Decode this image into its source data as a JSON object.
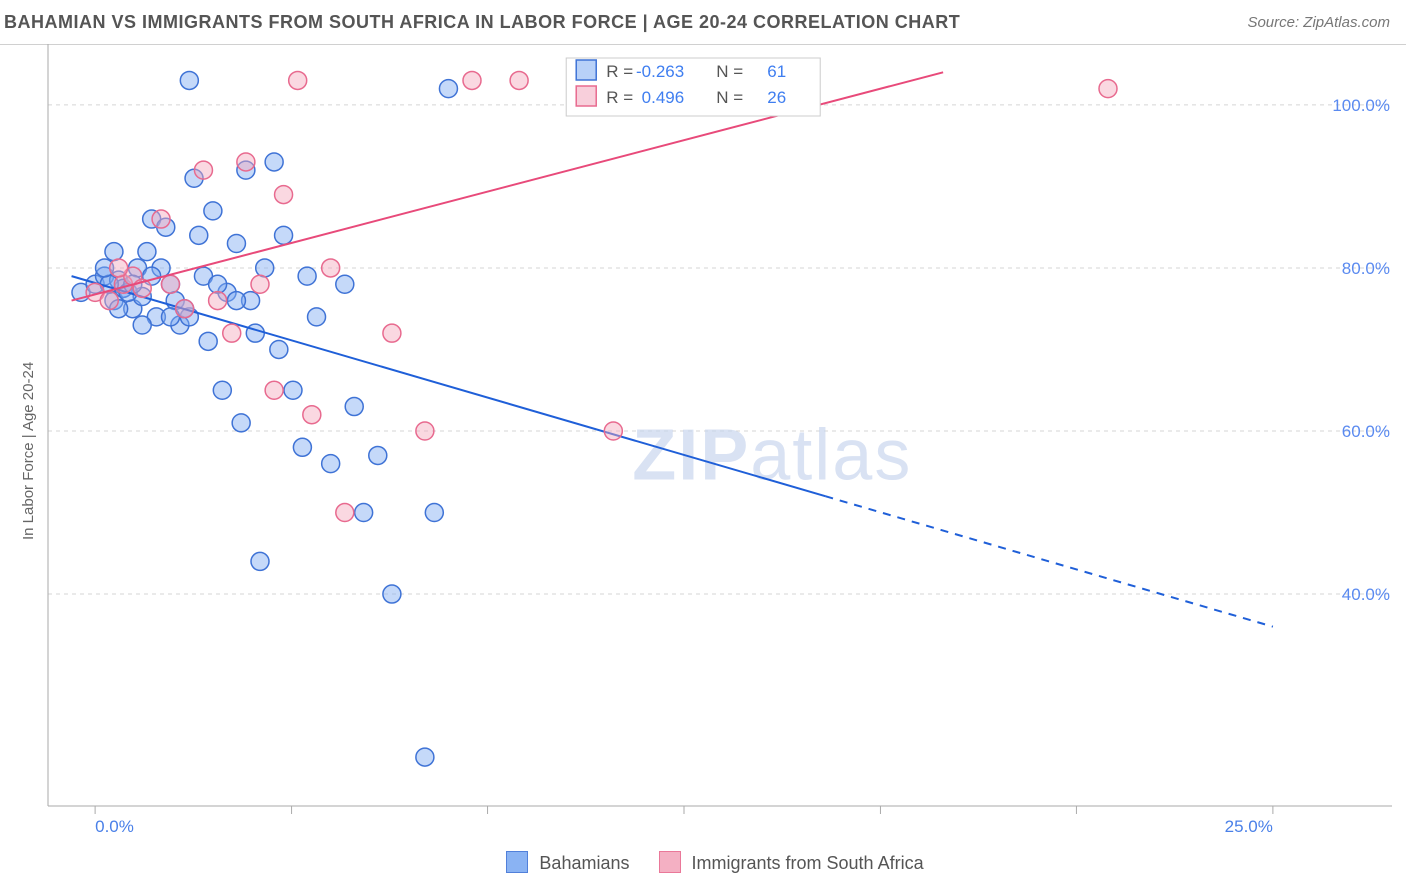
{
  "title": "BAHAMIAN VS IMMIGRANTS FROM SOUTH AFRICA IN LABOR FORCE | AGE 20-24 CORRELATION CHART",
  "source": "Source: ZipAtlas.com",
  "ylabel": "In Labor Force | Age 20-24",
  "watermark": "ZIPatlas",
  "chart": {
    "type": "scatter-correlation",
    "background_color": "#ffffff",
    "grid_color": "#d5d5d5",
    "axis_color": "#aaaaaa",
    "xlim": [
      -1,
      26
    ],
    "ylim": [
      14,
      106
    ],
    "xticks": [
      0,
      25
    ],
    "xtick_labels": [
      "0.0%",
      "25.0%"
    ],
    "xtick_minor": [
      4.17,
      8.33,
      12.5,
      16.67,
      20.83
    ],
    "yticks": [
      40,
      60,
      80,
      100
    ],
    "ytick_labels": [
      "40.0%",
      "60.0%",
      "80.0%",
      "100.0%"
    ],
    "marker_radius": 9,
    "marker_fill_opacity": 0.45,
    "marker_stroke_width": 1.5,
    "line_width": 2
  },
  "legend_top": {
    "r_label": "R =",
    "n_label": "N =",
    "value_color": "#3f7ef0",
    "box_bg": "#ffffff"
  },
  "bottom_legend": {
    "items": [
      {
        "label": "Bahamians",
        "fill": "#7eabf2",
        "stroke": "#3f73d6"
      },
      {
        "label": "Immigrants from South Africa",
        "fill": "#f3a8bd",
        "stroke": "#e86a8f"
      }
    ]
  },
  "series": [
    {
      "name": "Bahamians",
      "fill": "#7eabf2",
      "stroke": "#3f73d6",
      "line_color": "#1f5fd8",
      "R": "-0.263",
      "N": "61",
      "trend": {
        "x1": -0.5,
        "y1": 79,
        "solid_to_x": 15.5,
        "solid_to_y": 52,
        "x2": 25,
        "y2": 36
      },
      "points": [
        [
          -0.3,
          77
        ],
        [
          0.0,
          78
        ],
        [
          0.2,
          79
        ],
        [
          0.4,
          76
        ],
        [
          0.5,
          78.5
        ],
        [
          0.6,
          77.5
        ],
        [
          0.8,
          75
        ],
        [
          0.9,
          80
        ],
        [
          1.0,
          76.5
        ],
        [
          1.1,
          82
        ],
        [
          1.2,
          86
        ],
        [
          1.3,
          74
        ],
        [
          1.5,
          85
        ],
        [
          1.6,
          78
        ],
        [
          1.7,
          76
        ],
        [
          1.8,
          73
        ],
        [
          2.0,
          103
        ],
        [
          2.1,
          91
        ],
        [
          2.2,
          84
        ],
        [
          2.3,
          79
        ],
        [
          2.4,
          71
        ],
        [
          2.5,
          87
        ],
        [
          2.7,
          65
        ],
        [
          2.8,
          77
        ],
        [
          3.0,
          83
        ],
        [
          3.1,
          61
        ],
        [
          3.2,
          92
        ],
        [
          3.3,
          76
        ],
        [
          3.4,
          72
        ],
        [
          3.5,
          44
        ],
        [
          3.6,
          80
        ],
        [
          3.8,
          93
        ],
        [
          3.9,
          70
        ],
        [
          4.0,
          84
        ],
        [
          4.2,
          65
        ],
        [
          4.4,
          58
        ],
        [
          4.5,
          79
        ],
        [
          4.7,
          74
        ],
        [
          5.0,
          56
        ],
        [
          5.3,
          78
        ],
        [
          5.5,
          63
        ],
        [
          5.7,
          50
        ],
        [
          6.0,
          57
        ],
        [
          6.3,
          40
        ],
        [
          7.0,
          20
        ],
        [
          7.2,
          50
        ],
        [
          7.5,
          102
        ],
        [
          2.0,
          74
        ],
        [
          0.5,
          75
        ],
        [
          0.7,
          77
        ],
        [
          0.3,
          78
        ],
        [
          1.4,
          80
        ],
        [
          1.9,
          75
        ],
        [
          2.6,
          78
        ],
        [
          3.0,
          76
        ],
        [
          1.0,
          73
        ],
        [
          0.4,
          82
        ],
        [
          0.8,
          78
        ],
        [
          1.2,
          79
        ],
        [
          1.6,
          74
        ],
        [
          0.2,
          80
        ]
      ]
    },
    {
      "name": "Immigrants from South Africa",
      "fill": "#f3a8bd",
      "stroke": "#e86a8f",
      "line_color": "#e84a7a",
      "R": "0.496",
      "N": "26",
      "trend": {
        "x1": -0.5,
        "y1": 76,
        "solid_to_x": 18,
        "solid_to_y": 104,
        "x2": 18,
        "y2": 104
      },
      "points": [
        [
          0.0,
          77
        ],
        [
          0.3,
          76
        ],
        [
          0.6,
          78
        ],
        [
          0.8,
          79
        ],
        [
          1.0,
          77.5
        ],
        [
          1.4,
          86
        ],
        [
          1.6,
          78
        ],
        [
          1.9,
          75
        ],
        [
          2.3,
          92
        ],
        [
          2.6,
          76
        ],
        [
          2.9,
          72
        ],
        [
          3.2,
          93
        ],
        [
          3.5,
          78
        ],
        [
          3.8,
          65
        ],
        [
          4.0,
          89
        ],
        [
          4.3,
          103
        ],
        [
          4.6,
          62
        ],
        [
          5.0,
          80
        ],
        [
          5.3,
          50
        ],
        [
          6.3,
          72
        ],
        [
          7.0,
          60
        ],
        [
          8.0,
          103
        ],
        [
          9.0,
          103
        ],
        [
          11.0,
          60
        ],
        [
          21.5,
          102
        ],
        [
          0.5,
          80
        ]
      ]
    }
  ]
}
